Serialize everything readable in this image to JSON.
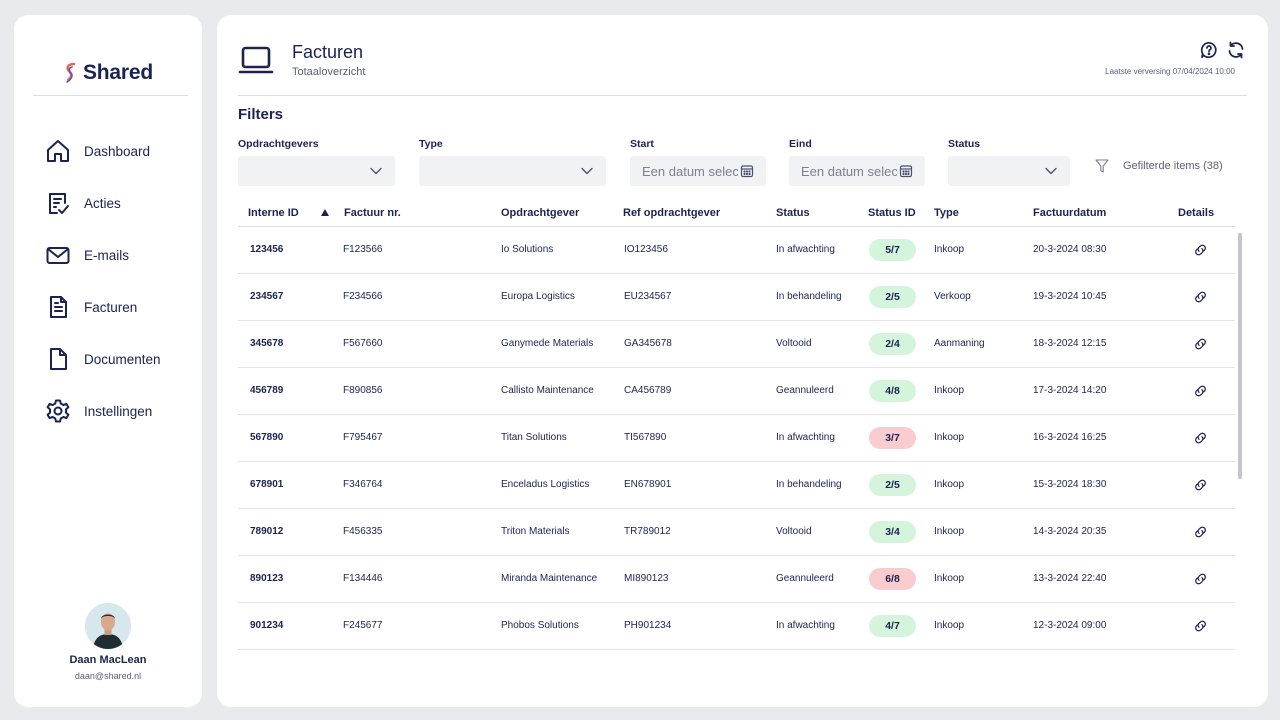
{
  "app": {
    "logo_text": "Shared"
  },
  "sidebar": {
    "items": [
      {
        "label": "Dashboard",
        "icon": "home-icon"
      },
      {
        "label": "Acties",
        "icon": "checklist-icon"
      },
      {
        "label": "E-mails",
        "icon": "mail-icon"
      },
      {
        "label": "Facturen",
        "icon": "invoice-icon"
      },
      {
        "label": "Documenten",
        "icon": "document-icon"
      },
      {
        "label": "Instellingen",
        "icon": "gear-icon"
      }
    ],
    "user": {
      "name": "Daan MacLean",
      "email": "daan@shared.nl"
    }
  },
  "header": {
    "title": "Facturen",
    "subtitle": "Totaaloverzicht",
    "last_refresh": "Laatste verversing 07/04/2024 10:00"
  },
  "filters": {
    "title": "Filters",
    "opdrachtgevers_label": "Opdrachtgevers",
    "type_label": "Type",
    "start_label": "Start",
    "start_placeholder": "Een datum selec",
    "eind_label": "Eind",
    "eind_placeholder": "Een datum selec",
    "status_label": "Status",
    "filtered_items": "Gefilterde items (38)"
  },
  "table": {
    "columns": [
      "Interne ID",
      "Factuur nr.",
      "Opdrachtgever",
      "Ref opdrachtgever",
      "Status",
      "Status ID",
      "Type",
      "Factuurdatum",
      "Details"
    ],
    "rows": [
      {
        "id": "123456",
        "factuur": "F123566",
        "opdrachtgever": "Io Solutions",
        "ref": "IO123456",
        "status": "In afwachting",
        "status_id": "5/7",
        "status_color": "#d4f5dc",
        "type": "Inkoop",
        "datum": "20-3-2024 08:30"
      },
      {
        "id": "234567",
        "factuur": "F234566",
        "opdrachtgever": "Europa Logistics",
        "ref": "EU234567",
        "status": "In behandeling",
        "status_id": "2/5",
        "status_color": "#d4f5dc",
        "type": "Verkoop",
        "datum": "19-3-2024 10:45"
      },
      {
        "id": "345678",
        "factuur": "F567660",
        "opdrachtgever": "Ganymede Materials",
        "ref": "GA345678",
        "status": "Voltooid",
        "status_id": "2/4",
        "status_color": "#d4f5dc",
        "type": "Aanmaning",
        "datum": "18-3-2024 12:15"
      },
      {
        "id": "456789",
        "factuur": "F890856",
        "opdrachtgever": "Callisto Maintenance",
        "ref": "CA456789",
        "status": "Geannuleerd",
        "status_id": "4/8",
        "status_color": "#d4f5dc",
        "type": "Inkoop",
        "datum": "17-3-2024 14:20"
      },
      {
        "id": "567890",
        "factuur": "F795467",
        "opdrachtgever": "Titan Solutions",
        "ref": "TI567890",
        "status": "In afwachting",
        "status_id": "3/7",
        "status_color": "#f9cdd0",
        "type": "Inkoop",
        "datum": "16-3-2024 16:25"
      },
      {
        "id": "678901",
        "factuur": "F346764",
        "opdrachtgever": "Enceladus Logistics",
        "ref": "EN678901",
        "status": "In behandeling",
        "status_id": "2/5",
        "status_color": "#d4f5dc",
        "type": "Inkoop",
        "datum": "15-3-2024 18:30"
      },
      {
        "id": "789012",
        "factuur": "F456335",
        "opdrachtgever": "Triton Materials",
        "ref": "TR789012",
        "status": "Voltooid",
        "status_id": "3/4",
        "status_color": "#d4f5dc",
        "type": "Inkoop",
        "datum": "14-3-2024 20:35"
      },
      {
        "id": "890123",
        "factuur": "F134446",
        "opdrachtgever": "Miranda Maintenance",
        "ref": "MI890123",
        "status": "Geannuleerd",
        "status_id": "6/8",
        "status_color": "#f9cdd0",
        "type": "Inkoop",
        "datum": "13-3-2024 22:40"
      },
      {
        "id": "901234",
        "factuur": "F245677",
        "opdrachtgever": "Phobos Solutions",
        "ref": "PH901234",
        "status": "In afwachting",
        "status_id": "4/7",
        "status_color": "#d4f5dc",
        "type": "Inkoop",
        "datum": "12-3-2024 09:00"
      }
    ]
  }
}
